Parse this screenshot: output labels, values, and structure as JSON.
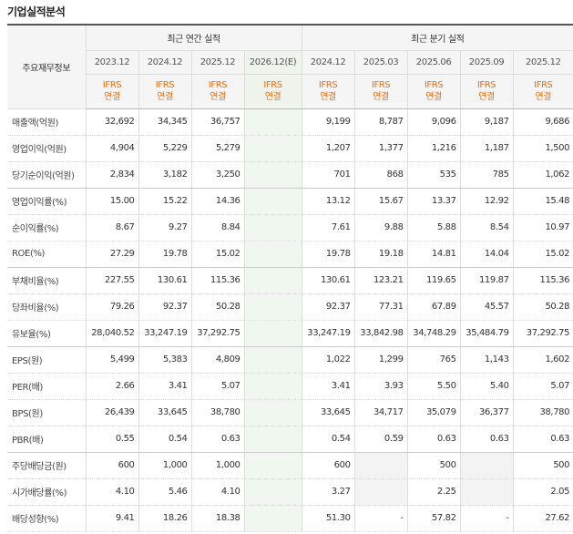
{
  "section_title": "기업실적분석",
  "corner_label": "주요재무정보",
  "annual_header": "최근 연간 실적",
  "quarter_header": "최근 분기 실적",
  "annual_periods": [
    "2023.12",
    "2024.12",
    "2025.12",
    "2026.12(E)"
  ],
  "quarter_periods": [
    "2024.12",
    "2025.03",
    "2025.06",
    "2025.09",
    "2025.12"
  ],
  "ifrs_line1": "IFRS",
  "ifrs_line2": "연결",
  "rows": [
    {
      "label": "매출액(억원)",
      "annual": [
        "32,692",
        "34,345",
        "36,757",
        ""
      ],
      "quarter": [
        "9,199",
        "8,787",
        "9,096",
        "9,187",
        "9,686"
      ]
    },
    {
      "label": "영업이익(억원)",
      "annual": [
        "4,904",
        "5,229",
        "5,279",
        ""
      ],
      "quarter": [
        "1,207",
        "1,377",
        "1,216",
        "1,187",
        "1,500"
      ]
    },
    {
      "label": "당기순이익(억원)",
      "annual": [
        "2,834",
        "3,182",
        "3,250",
        ""
      ],
      "quarter": [
        "701",
        "868",
        "535",
        "785",
        "1,062"
      ]
    },
    {
      "label": "영업이익률(%)",
      "annual": [
        "15.00",
        "15.22",
        "14.36",
        ""
      ],
      "quarter": [
        "13.12",
        "15.67",
        "13.37",
        "12.92",
        "15.48"
      ]
    },
    {
      "label": "순이익률(%)",
      "annual": [
        "8.67",
        "9.27",
        "8.84",
        ""
      ],
      "quarter": [
        "7.61",
        "9.88",
        "5.88",
        "8.54",
        "10.97"
      ]
    },
    {
      "label": "ROE(%)",
      "annual": [
        "27.29",
        "19.78",
        "15.02",
        ""
      ],
      "quarter": [
        "19.78",
        "19.18",
        "14.81",
        "14.04",
        "15.02"
      ]
    },
    {
      "label": "부채비율(%)",
      "annual": [
        "227.55",
        "130.61",
        "115.36",
        ""
      ],
      "quarter": [
        "130.61",
        "123.21",
        "119.65",
        "119.87",
        "115.36"
      ]
    },
    {
      "label": "당좌비율(%)",
      "annual": [
        "79.26",
        "92.37",
        "50.28",
        ""
      ],
      "quarter": [
        "92.37",
        "77.31",
        "67.89",
        "45.57",
        "50.28"
      ]
    },
    {
      "label": "유보율(%)",
      "annual": [
        "28,040.52",
        "33,247.19",
        "37,292.75",
        ""
      ],
      "quarter": [
        "33,247.19",
        "33,842.98",
        "34,748.29",
        "35,484.79",
        "37,292.75"
      ]
    },
    {
      "label": "EPS(원)",
      "annual": [
        "5,499",
        "5,383",
        "4,809",
        ""
      ],
      "quarter": [
        "1,022",
        "1,299",
        "765",
        "1,143",
        "1,602"
      ]
    },
    {
      "label": "PER(배)",
      "annual": [
        "2.66",
        "3.41",
        "5.07",
        ""
      ],
      "quarter": [
        "3.41",
        "3.93",
        "5.50",
        "5.40",
        "5.07"
      ]
    },
    {
      "label": "BPS(원)",
      "annual": [
        "26,439",
        "33,645",
        "38,780",
        ""
      ],
      "quarter": [
        "33,645",
        "34,717",
        "35,079",
        "36,377",
        "38,780"
      ]
    },
    {
      "label": "PBR(배)",
      "annual": [
        "0.55",
        "0.54",
        "0.63",
        ""
      ],
      "quarter": [
        "0.54",
        "0.59",
        "0.63",
        "0.63",
        "0.63"
      ]
    },
    {
      "label": "주당배당금(원)",
      "annual": [
        "600",
        "1,000",
        "1,000",
        ""
      ],
      "quarter": [
        "600",
        "",
        "500",
        "",
        "500"
      ]
    },
    {
      "label": "시가배당률(%)",
      "annual": [
        "4.10",
        "5.46",
        "4.10",
        ""
      ],
      "quarter": [
        "3.27",
        "",
        "2.25",
        "",
        "2.05"
      ]
    },
    {
      "label": "배당성향(%)",
      "annual": [
        "9.41",
        "18.26",
        "18.38",
        ""
      ],
      "quarter": [
        "51.30",
        "-",
        "57.82",
        "-",
        "27.62"
      ]
    }
  ]
}
